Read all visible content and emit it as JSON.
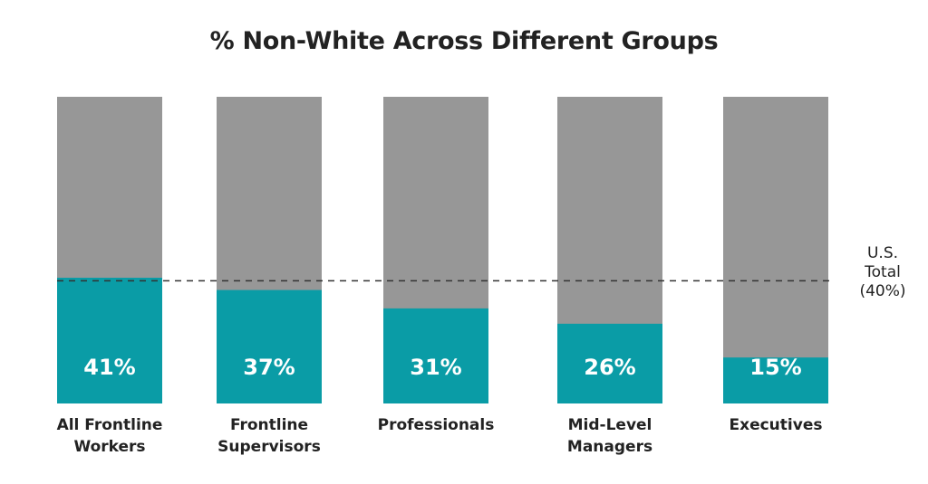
{
  "chart_data": {
    "type": "bar",
    "title": "% Non-White Across Different Groups",
    "categories": [
      [
        "All Frontline",
        "Workers"
      ],
      [
        "Frontline",
        "Supervisors"
      ],
      [
        "Professionals"
      ],
      [
        "Mid-Level",
        "Managers"
      ],
      [
        "Executives"
      ]
    ],
    "values": [
      41,
      37,
      31,
      26,
      15
    ],
    "value_labels": [
      "41%",
      "37%",
      "31%",
      "26%",
      "15%"
    ],
    "ylim": [
      0,
      100
    ],
    "stacked_remainder": true,
    "reference_line": {
      "value": 40,
      "label_lines": [
        "U.S.",
        "Total",
        "(40%)"
      ],
      "style": "dashed"
    },
    "colors": {
      "value_fill": "#0a9ca6",
      "remainder_fill": "#979797",
      "reference_line": "#333333",
      "value_label": "#ffffff",
      "text": "#222222"
    },
    "grid": false,
    "legend": "none"
  }
}
